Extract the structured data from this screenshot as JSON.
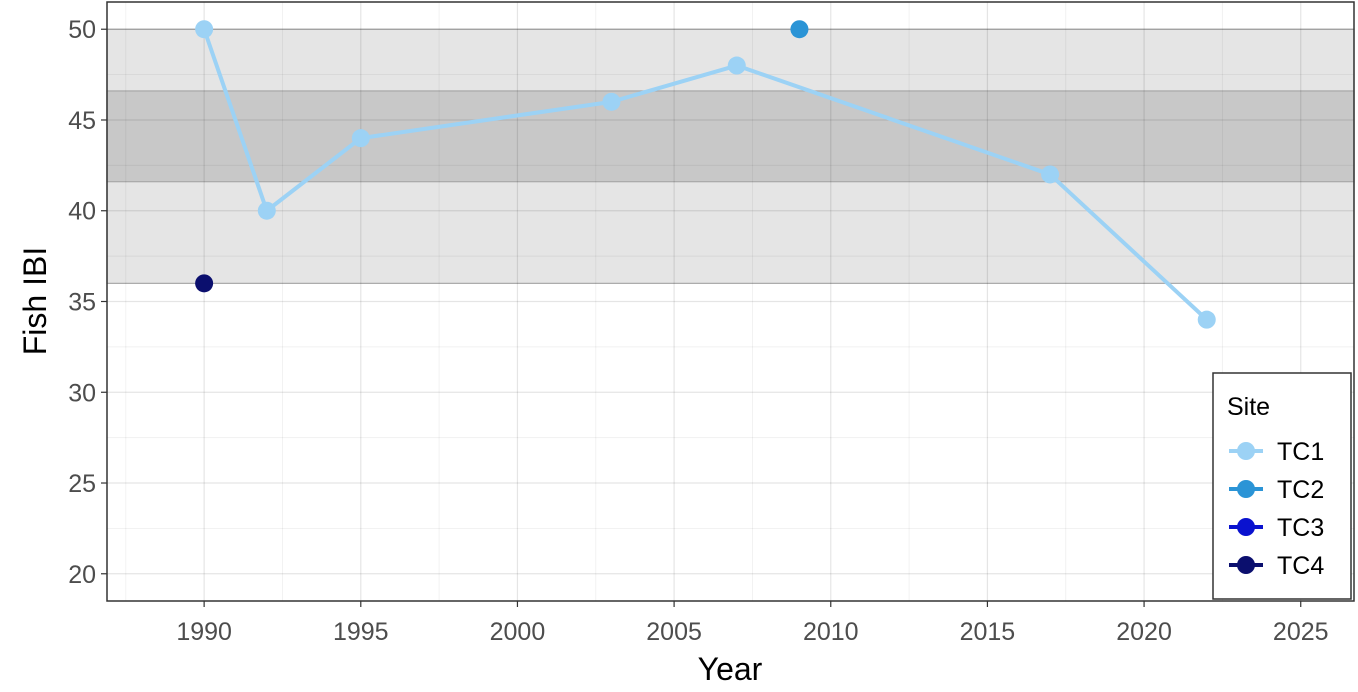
{
  "chart_data": {
    "type": "line",
    "xlabel": "Year",
    "ylabel": "Fish IBI",
    "xlim": [
      1986.9,
      2026.7
    ],
    "ylim": [
      18.5,
      51.5
    ],
    "x_ticks": [
      1990,
      1995,
      2000,
      2005,
      2010,
      2015,
      2020,
      2025
    ],
    "y_ticks": [
      20,
      25,
      30,
      35,
      40,
      45,
      50
    ],
    "grid": true,
    "bands": [
      {
        "ymin": 36,
        "ymax": 50,
        "color": "#e5e5e5"
      },
      {
        "ymin": 41.6,
        "ymax": 46.6,
        "color": "#c8c8c8"
      }
    ],
    "legend": {
      "title": "Site",
      "position": "bottom-right"
    },
    "series": [
      {
        "name": "TC1",
        "color": "#9cd2f5",
        "line": true,
        "x": [
          1990,
          1992,
          1995,
          2003,
          2007,
          2017,
          2022
        ],
        "y": [
          50,
          40,
          44,
          46,
          48,
          42,
          34
        ]
      },
      {
        "name": "TC2",
        "color": "#2b94d6",
        "line": false,
        "x": [
          2009
        ],
        "y": [
          50
        ]
      },
      {
        "name": "TC3",
        "color": "#0a12cf",
        "line": false,
        "x": [],
        "y": []
      },
      {
        "name": "TC4",
        "color": "#0b0f6e",
        "line": false,
        "x": [
          1990
        ],
        "y": [
          36
        ]
      }
    ]
  }
}
